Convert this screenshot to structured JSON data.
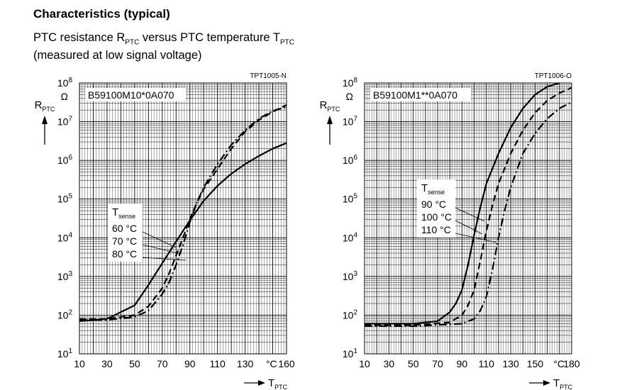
{
  "header": {
    "title": "Characteristics (typical)",
    "subtitle_line1": {
      "pre": "PTC resistance R",
      "sub1": "PTC",
      "mid": " versus PTC temperature T",
      "sub2": "PTC"
    },
    "subtitle_line2": "(measured at low signal voltage)"
  },
  "chart_data": [
    {
      "type": "line",
      "code": "TPT1005-N",
      "part_label": "B59100M10*0A070",
      "ylabel": {
        "main": "R",
        "sub": "PTC",
        "unit": "Ω"
      },
      "xlabel": {
        "main": "T",
        "sub": "PTC",
        "unit": "°C"
      },
      "y_scale": "log",
      "ylim": [
        10,
        100000000
      ],
      "y_ticks": [
        {
          "value": 10,
          "base": "10",
          "exp": "1"
        },
        {
          "value": 100,
          "base": "10",
          "exp": "2"
        },
        {
          "value": 1000,
          "base": "10",
          "exp": "3"
        },
        {
          "value": 10000,
          "base": "10",
          "exp": "4"
        },
        {
          "value": 100000,
          "base": "10",
          "exp": "5"
        },
        {
          "value": 1000000,
          "base": "10",
          "exp": "6"
        },
        {
          "value": 10000000,
          "base": "10",
          "exp": "7"
        },
        {
          "value": 100000000,
          "base": "10",
          "exp": "8"
        }
      ],
      "xlim": [
        10,
        160
      ],
      "x_ticks": [
        10,
        30,
        50,
        70,
        90,
        110,
        130,
        160
      ],
      "x_tick_labels": [
        "10",
        "30",
        "50",
        "70",
        "90",
        "110",
        "130",
        "160"
      ],
      "grid": true,
      "legend": {
        "title": {
          "main": "T",
          "sub": "sense"
        },
        "entries": [
          "60 °C",
          "70 °C",
          "80 °C"
        ],
        "placement": "middle-left"
      },
      "series": [
        {
          "name": "60 °C",
          "style": "solid",
          "x": [
            10,
            30,
            50,
            60,
            70,
            80,
            90,
            100,
            110,
            120,
            130,
            140,
            150,
            160
          ],
          "y": [
            70,
            80,
            180,
            600,
            2200,
            8000,
            28000,
            90000,
            220000,
            450000,
            800000,
            1300000,
            2000000,
            2800000
          ]
        },
        {
          "name": "70 °C",
          "style": "dashed",
          "x": [
            10,
            30,
            50,
            60,
            70,
            75,
            80,
            85,
            90,
            95,
            100,
            110,
            120,
            130,
            140,
            150,
            160
          ],
          "y": [
            80,
            80,
            100,
            170,
            500,
            1200,
            3500,
            10000,
            30000,
            80000,
            180000,
            600000,
            2000000,
            5500000,
            11000000,
            18000000,
            27000000
          ]
        },
        {
          "name": "80 °C",
          "style": "dashdot",
          "x": [
            10,
            30,
            50,
            60,
            70,
            75,
            80,
            85,
            90,
            95,
            100,
            110,
            120,
            130,
            140,
            150,
            160
          ],
          "y": [
            75,
            75,
            90,
            130,
            350,
            700,
            2000,
            6500,
            25000,
            80000,
            200000,
            800000,
            2500000,
            6000000,
            12000000,
            19000000,
            24000000
          ]
        }
      ]
    },
    {
      "type": "line",
      "code": "TPT1006-O",
      "part_label": "B59100M1**0A070",
      "ylabel": {
        "main": "R",
        "sub": "PTC",
        "unit": "Ω"
      },
      "xlabel": {
        "main": "T",
        "sub": "PTC",
        "unit": "°C"
      },
      "y_scale": "log",
      "ylim": [
        10,
        100000000
      ],
      "y_ticks": [
        {
          "value": 10,
          "base": "10",
          "exp": "1"
        },
        {
          "value": 100,
          "base": "10",
          "exp": "2"
        },
        {
          "value": 1000,
          "base": "10",
          "exp": "3"
        },
        {
          "value": 10000,
          "base": "10",
          "exp": "4"
        },
        {
          "value": 100000,
          "base": "10",
          "exp": "5"
        },
        {
          "value": 1000000,
          "base": "10",
          "exp": "6"
        },
        {
          "value": 10000000,
          "base": "10",
          "exp": "7"
        },
        {
          "value": 100000000,
          "base": "10",
          "exp": "8"
        }
      ],
      "xlim": [
        10,
        180
      ],
      "x_ticks": [
        10,
        30,
        50,
        70,
        90,
        110,
        130,
        150,
        180
      ],
      "x_tick_labels": [
        "10",
        "30",
        "50",
        "70",
        "90",
        "110",
        "130",
        "150",
        "180"
      ],
      "grid": true,
      "legend": {
        "title": {
          "main": "T",
          "sub": "sense"
        },
        "entries": [
          "90 °C",
          "100 °C",
          "110 °C"
        ],
        "placement": "middle-center"
      },
      "series": [
        {
          "name": "90 °C",
          "style": "solid",
          "x": [
            10,
            50,
            70,
            80,
            85,
            90,
            95,
            100,
            105,
            110,
            120,
            130,
            140,
            150,
            160,
            170
          ],
          "y": [
            60,
            60,
            70,
            120,
            200,
            450,
            2000,
            12000,
            60000,
            250000,
            1500000,
            7000000,
            22000000,
            50000000,
            80000000,
            100000000
          ]
        },
        {
          "name": "100 °C",
          "style": "dashed",
          "x": [
            10,
            50,
            80,
            90,
            95,
            100,
            105,
            110,
            115,
            120,
            130,
            140,
            150,
            160,
            170,
            180
          ],
          "y": [
            55,
            55,
            65,
            100,
            180,
            450,
            2500,
            15000,
            70000,
            250000,
            1500000,
            6000000,
            17000000,
            35000000,
            55000000,
            75000000
          ]
        },
        {
          "name": "110 °C",
          "style": "dashdot",
          "x": [
            10,
            50,
            90,
            100,
            105,
            110,
            115,
            120,
            125,
            130,
            140,
            150,
            160,
            170,
            180
          ],
          "y": [
            52,
            52,
            60,
            80,
            130,
            300,
            1500,
            10000,
            50000,
            200000,
            1500000,
            5000000,
            12000000,
            22000000,
            32000000
          ]
        }
      ]
    }
  ]
}
